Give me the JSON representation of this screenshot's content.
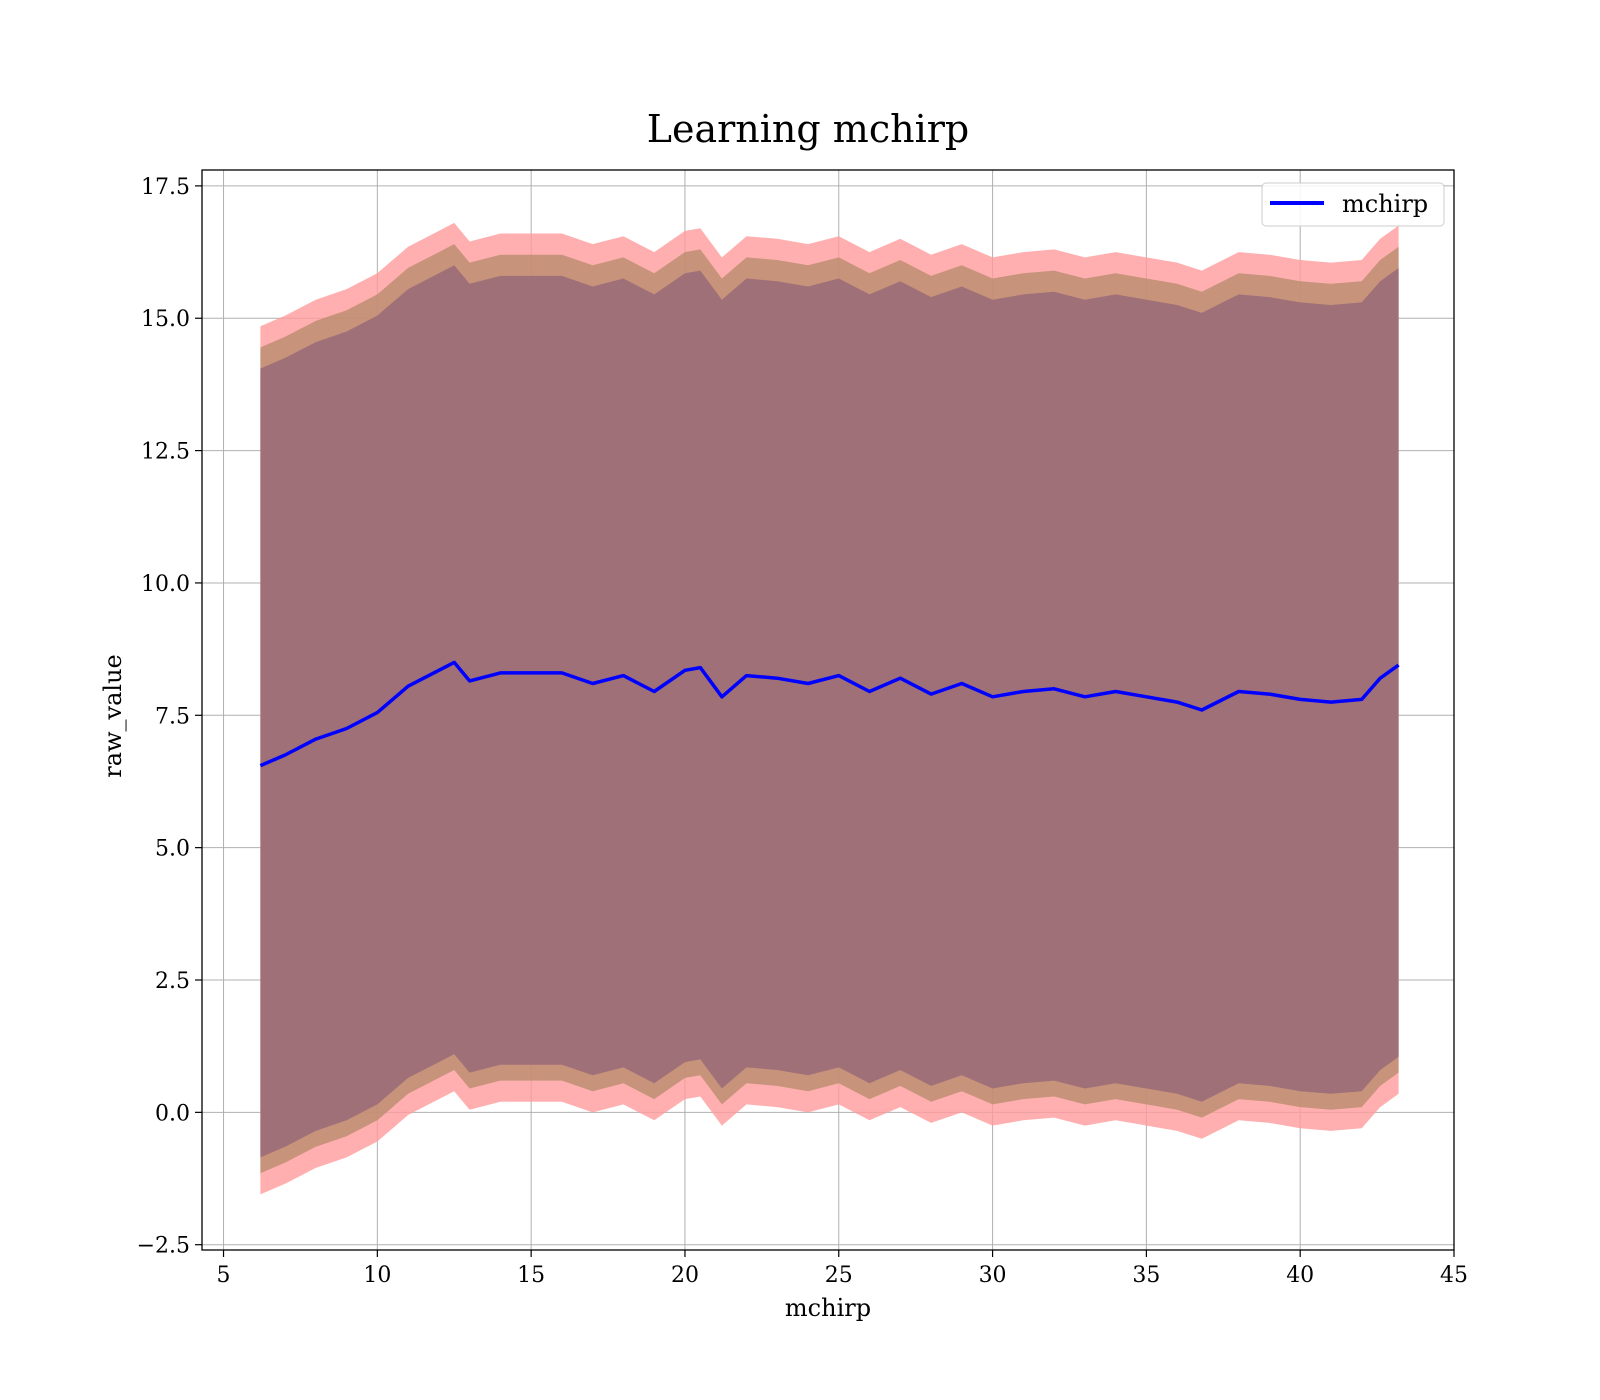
{
  "chart_data": {
    "type": "line",
    "title": "Learning mchirp",
    "xlabel": "mchirp",
    "ylabel": "raw_value",
    "xlim": [
      4.3,
      45
    ],
    "ylim": [
      -2.6,
      17.8
    ],
    "xticks": [
      5,
      10,
      15,
      20,
      25,
      30,
      35,
      40,
      45
    ],
    "xtick_labels": [
      "5",
      "10",
      "15",
      "20",
      "25",
      "30",
      "35",
      "40",
      "45"
    ],
    "yticks": [
      -2.5,
      0.0,
      2.5,
      5.0,
      7.5,
      10.0,
      12.5,
      15.0,
      17.5
    ],
    "ytick_labels": [
      "−2.5",
      "0.0",
      "2.5",
      "5.0",
      "7.5",
      "10.0",
      "12.5",
      "15.0",
      "17.5"
    ],
    "grid": true,
    "legend": {
      "position": "top-right",
      "entries": [
        "mchirp"
      ]
    },
    "colors": {
      "line": "#0000ff",
      "outer_band": "#ff9b9b",
      "middle_band": "#b68a6a",
      "inner_band": "#a07078"
    },
    "series": [
      {
        "name": "mchirp",
        "x": [
          6.2,
          7.0,
          8.0,
          9.0,
          10.0,
          11.0,
          12.0,
          12.5,
          13.0,
          14.0,
          15.0,
          16.0,
          17.0,
          18.0,
          19.0,
          20.0,
          20.5,
          21.2,
          22.0,
          23.0,
          24.0,
          25.0,
          26.0,
          27.0,
          28.0,
          29.0,
          30.0,
          31.0,
          32.0,
          33.0,
          34.0,
          35.0,
          36.0,
          36.8,
          38.0,
          39.0,
          40.0,
          41.0,
          42.0,
          42.6,
          43.2
        ],
        "values": [
          6.55,
          6.75,
          7.05,
          7.25,
          7.55,
          8.05,
          8.35,
          8.5,
          8.15,
          8.3,
          8.3,
          8.3,
          8.1,
          8.25,
          7.95,
          8.35,
          8.4,
          7.85,
          8.25,
          8.2,
          8.1,
          8.25,
          7.95,
          8.2,
          7.9,
          8.1,
          7.85,
          7.95,
          8.0,
          7.85,
          7.95,
          7.85,
          7.75,
          7.6,
          7.95,
          7.9,
          7.8,
          7.75,
          7.8,
          8.2,
          8.45
        ]
      }
    ],
    "bands": [
      {
        "offset_low": -8.1,
        "offset_high": 8.3
      },
      {
        "offset_low": -7.7,
        "offset_high": 7.9
      },
      {
        "offset_low": -7.4,
        "offset_high": 7.5
      }
    ]
  }
}
